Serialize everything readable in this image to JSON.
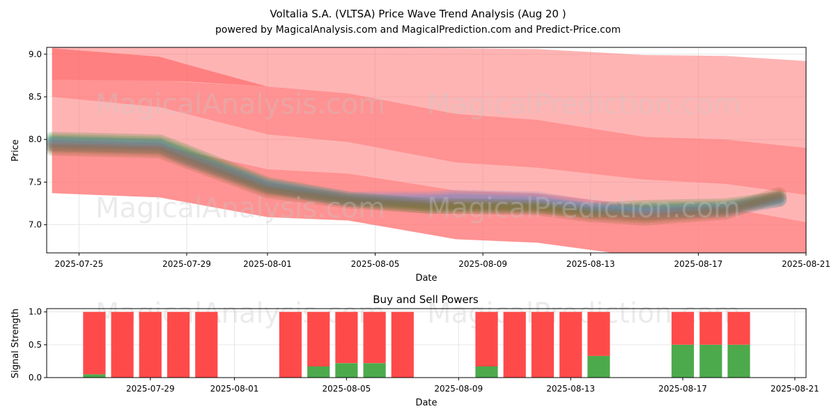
{
  "chart_data": [
    {
      "type": "area",
      "title": "Voltalia S.A. (VLTSA) Price Wave Trend Analysis (Aug 20 )",
      "subtitle": "powered by MagicalAnalysis.com and MagicalPrediction.com and Predict-Price.com",
      "xlabel": "Date",
      "ylabel": "Price",
      "xlim": [
        "2025-07-23.8",
        "2025-08-21"
      ],
      "ylim": [
        6.67,
        9.08
      ],
      "x_ticks": [
        "2025-07-25",
        "2025-07-29",
        "2025-08-01",
        "2025-08-05",
        "2025-08-09",
        "2025-08-13",
        "2025-08-17",
        "2025-08-21"
      ],
      "y_ticks": [
        7.0,
        7.5,
        8.0,
        8.5,
        9.0
      ],
      "grid": true,
      "bands": [
        {
          "name": "upper band",
          "color": "#ff7777",
          "x": [
            "2025-07-24",
            "2025-07-28",
            "2025-08-01",
            "2025-08-04",
            "2025-08-08",
            "2025-08-11",
            "2025-08-15",
            "2025-08-18",
            "2025-08-21"
          ],
          "upper": [
            9.08,
            9.08,
            9.08,
            9.08,
            9.07,
            9.06,
            8.99,
            8.98,
            8.92
          ],
          "lower": [
            8.5,
            8.38,
            8.06,
            7.97,
            7.73,
            7.67,
            7.53,
            7.48,
            7.35
          ]
        },
        {
          "name": "middle band",
          "color": "#ff7777",
          "x": [
            "2025-07-24",
            "2025-07-28",
            "2025-08-01",
            "2025-08-04",
            "2025-08-08",
            "2025-08-11",
            "2025-08-15",
            "2025-08-18",
            "2025-08-21"
          ],
          "upper": [
            8.7,
            8.69,
            8.62,
            8.54,
            8.3,
            8.23,
            8.03,
            8.0,
            7.9
          ],
          "lower": [
            7.37,
            7.32,
            7.09,
            7.05,
            6.83,
            6.79,
            6.62,
            6.6,
            6.6
          ]
        },
        {
          "name": "lower band",
          "color": "#ff7777",
          "x": [
            "2025-07-24",
            "2025-07-28",
            "2025-08-01",
            "2025-08-04",
            "2025-08-08",
            "2025-08-11",
            "2025-08-15",
            "2025-08-18",
            "2025-08-21"
          ],
          "upper": [
            7.95,
            7.93,
            7.65,
            7.6,
            7.4,
            7.37,
            7.22,
            7.2,
            7.03
          ],
          "lower": [
            7.37,
            7.32,
            7.09,
            7.05,
            6.83,
            6.79,
            6.62,
            6.6,
            6.6
          ]
        },
        {
          "name": "upper band dark",
          "color": "#ff5555",
          "x": [
            "2025-07-24",
            "2025-07-28",
            "2025-07-29",
            "2025-08-01"
          ],
          "upper": [
            9.07,
            8.97,
            8.88,
            8.62
          ],
          "lower": [
            8.7,
            8.69,
            8.68,
            8.62
          ]
        }
      ],
      "series": [
        {
          "name": "green ensemble",
          "color": "#2e8b3c",
          "x": [
            "2025-07-24",
            "2025-07-28",
            "2025-07-29",
            "2025-08-01",
            "2025-08-04",
            "2025-08-07",
            "2025-08-08",
            "2025-08-11",
            "2025-08-13",
            "2025-08-15",
            "2025-08-18",
            "2025-08-20"
          ],
          "values": [
            8.0,
            7.97,
            7.85,
            7.47,
            7.3,
            7.22,
            7.22,
            7.22,
            7.17,
            7.2,
            7.22,
            7.3
          ]
        },
        {
          "name": "blue ensemble",
          "color": "#6f87c9",
          "x": [
            "2025-07-24",
            "2025-07-28",
            "2025-07-29",
            "2025-08-01",
            "2025-08-04",
            "2025-08-07",
            "2025-08-08",
            "2025-08-11",
            "2025-08-13",
            "2025-08-15",
            "2025-08-18",
            "2025-08-20"
          ],
          "values": [
            7.95,
            7.92,
            7.78,
            7.45,
            7.3,
            7.3,
            7.32,
            7.3,
            7.2,
            7.15,
            7.18,
            7.3
          ]
        },
        {
          "name": "brown ensemble",
          "color": "#8a6a3a",
          "x": [
            "2025-07-24",
            "2025-07-28",
            "2025-07-29",
            "2025-08-01",
            "2025-08-04",
            "2025-08-07",
            "2025-08-08",
            "2025-08-11",
            "2025-08-13",
            "2025-08-15",
            "2025-08-18",
            "2025-08-20"
          ],
          "values": [
            7.9,
            7.87,
            7.75,
            7.4,
            7.28,
            7.22,
            7.22,
            7.2,
            7.12,
            7.08,
            7.15,
            7.35
          ]
        }
      ]
    },
    {
      "type": "bar",
      "title": "Buy and Sell Powers",
      "xlabel": "Date",
      "ylabel": "Signal Strength",
      "ylim": [
        0,
        1.05
      ],
      "y_ticks": [
        0.0,
        0.5,
        1.0
      ],
      "x_ticks": [
        "2025-07-29",
        "2025-08-01",
        "2025-08-05",
        "2025-08-09",
        "2025-08-13",
        "2025-08-17",
        "2025-08-21"
      ],
      "grid": true,
      "categories": [
        "2025-07-27",
        "2025-07-28",
        "2025-07-29",
        "2025-07-30",
        "2025-07-31",
        "2025-08-03",
        "2025-08-04",
        "2025-08-05",
        "2025-08-06",
        "2025-08-07",
        "2025-08-10",
        "2025-08-11",
        "2025-08-12",
        "2025-08-13",
        "2025-08-14",
        "2025-08-17",
        "2025-08-18",
        "2025-08-19"
      ],
      "series": [
        {
          "name": "Buy",
          "color": "#4caa4c",
          "values": [
            0.05,
            0,
            0,
            0,
            0,
            0,
            0.17,
            0.22,
            0.22,
            0,
            0.17,
            0,
            0,
            0,
            0.33,
            0.5,
            0.5,
            0.5
          ]
        },
        {
          "name": "Sell",
          "color": "#ff4a4a",
          "values": [
            0.95,
            1,
            1,
            1,
            1,
            1,
            0.83,
            0.78,
            0.78,
            1,
            0.83,
            1,
            1,
            1,
            0.67,
            0.5,
            0.5,
            0.5
          ]
        }
      ]
    }
  ],
  "watermarks": [
    "MagicalAnalysis.com",
    "MagicalPrediction.com"
  ]
}
